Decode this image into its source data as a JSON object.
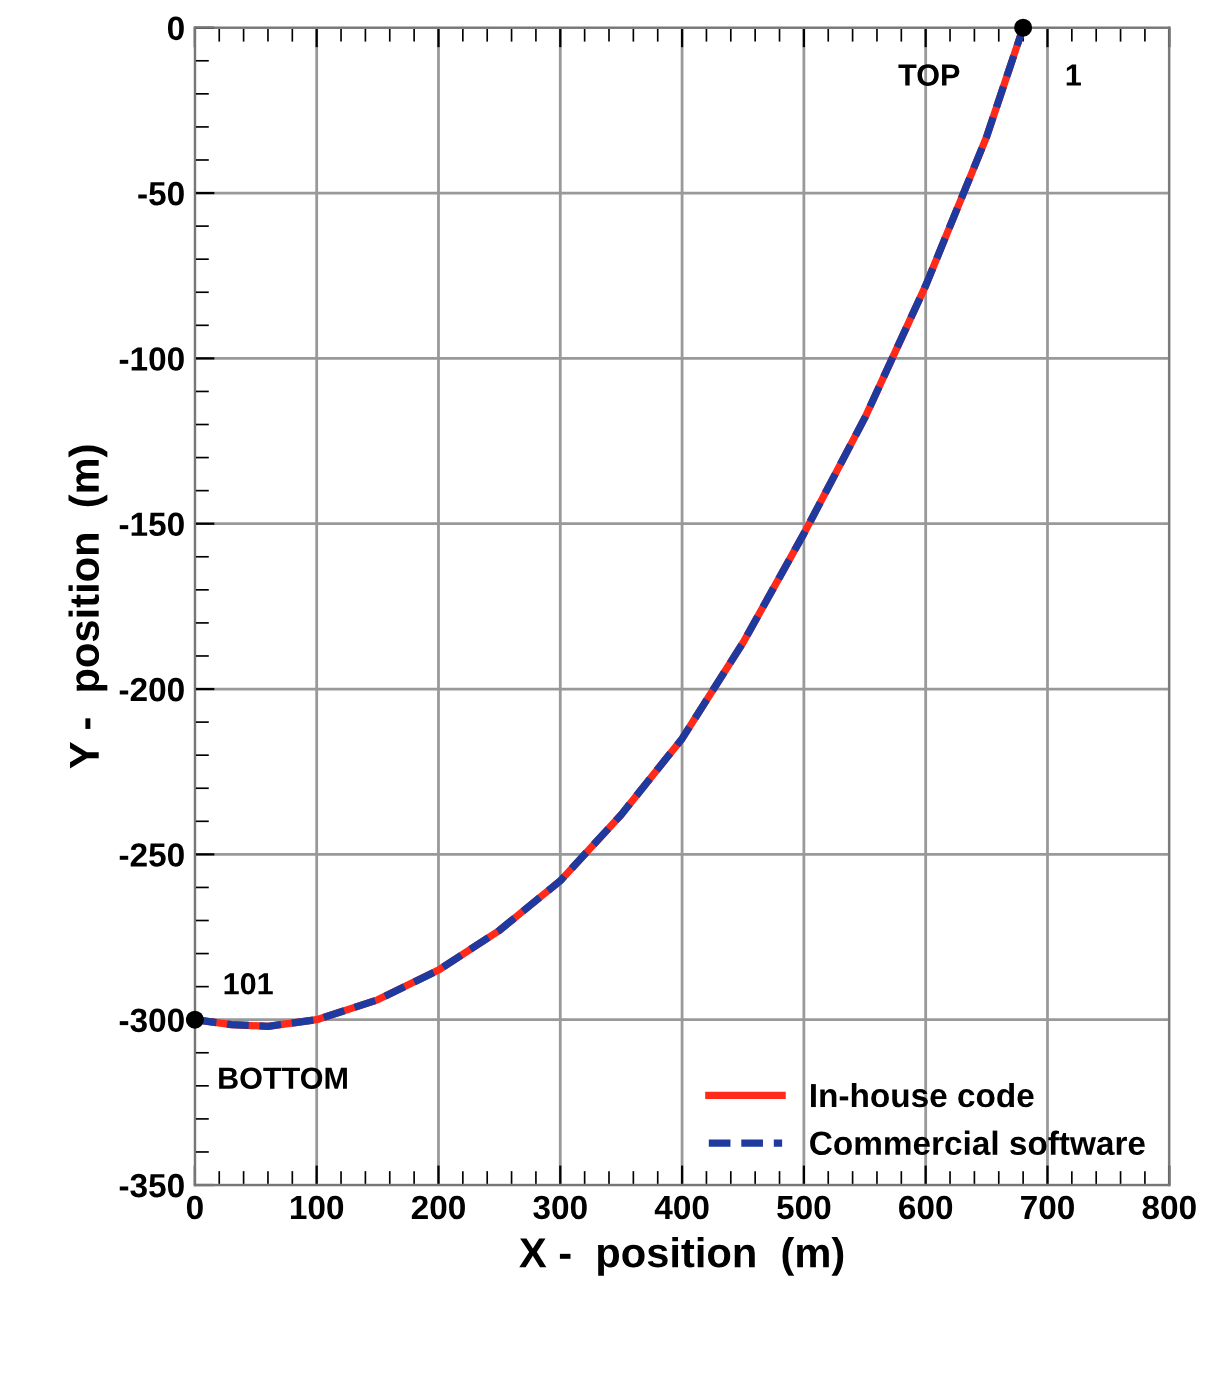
{
  "chart_data": {
    "type": "line",
    "xlabel": "X -  position  (m)",
    "ylabel": "Y -  position  (m)",
    "xlim": [
      0,
      800
    ],
    "ylim": [
      -350,
      0
    ],
    "xticks": [
      0,
      100,
      200,
      300,
      400,
      500,
      600,
      700,
      800
    ],
    "yticks": [
      -350,
      -300,
      -250,
      -200,
      -150,
      -100,
      -50,
      0
    ],
    "grid": true,
    "legend": "bottom right",
    "series": [
      {
        "name": "In-house code",
        "color": "#ff2a1a",
        "line_style": "solid",
        "x": [
          0,
          30,
          60,
          100,
          150,
          200,
          250,
          300,
          350,
          400,
          450,
          500,
          550,
          600,
          650,
          680
        ],
        "values": [
          -300,
          -301.5,
          -302,
          -300,
          -294,
          -285,
          -273,
          -258,
          -238,
          -215,
          -186,
          -153,
          -118,
          -78,
          -33,
          0
        ]
      },
      {
        "name": "Commercial software",
        "color": "#1f3a9e",
        "line_style": "dashed",
        "x": [
          0,
          30,
          60,
          100,
          150,
          200,
          250,
          300,
          350,
          400,
          450,
          500,
          550,
          600,
          650,
          680
        ],
        "values": [
          -300,
          -301.5,
          -302,
          -300,
          -294,
          -285,
          -273,
          -258,
          -238,
          -215,
          -186,
          -153,
          -118,
          -78,
          -33,
          0
        ]
      },
      {
        "type": "scatter",
        "color": "#000000",
        "marker": "circle",
        "x": [
          680,
          0
        ],
        "values": [
          0,
          -300
        ]
      }
    ],
    "annotations": [
      "TOP",
      "1",
      "101",
      "BOTTOM"
    ]
  }
}
